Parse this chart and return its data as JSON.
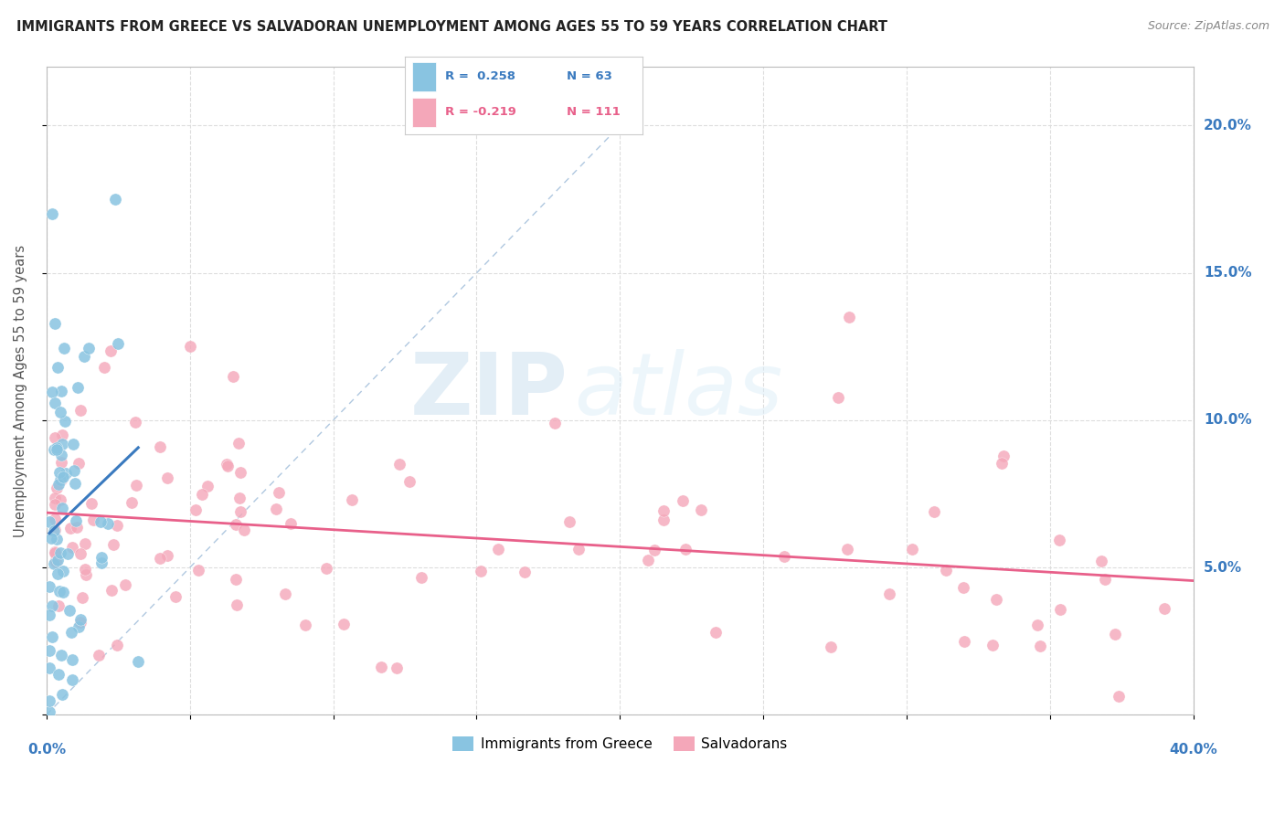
{
  "title": "IMMIGRANTS FROM GREECE VS SALVADORAN UNEMPLOYMENT AMONG AGES 55 TO 59 YEARS CORRELATION CHART",
  "source": "Source: ZipAtlas.com",
  "ylabel": "Unemployment Among Ages 55 to 59 years",
  "xlim": [
    0.0,
    0.4
  ],
  "ylim": [
    0.0,
    0.22
  ],
  "blue_color": "#89c4e1",
  "pink_color": "#f4a7b9",
  "blue_line_color": "#3a7abf",
  "pink_line_color": "#e8608a",
  "diagonal_color": "#b0c8e0",
  "background": "#ffffff",
  "grid_color": "#dddddd",
  "greece_R": 0.258,
  "greece_N": 63,
  "salvadoran_R": -0.219,
  "salvadoran_N": 111,
  "ytick_values": [
    0.0,
    0.05,
    0.1,
    0.15,
    0.2
  ],
  "xtick_values": [
    0.0,
    0.05,
    0.1,
    0.15,
    0.2,
    0.25,
    0.3,
    0.35,
    0.4
  ],
  "watermark_zip_color": "#c8dff0",
  "watermark_atlas_color": "#d8eaf7"
}
